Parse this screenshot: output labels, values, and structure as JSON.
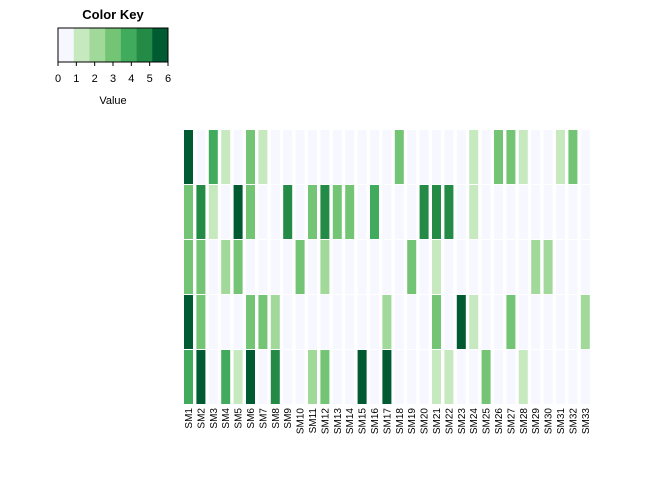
{
  "chart_data": {
    "type": "heatmap",
    "title": "",
    "color_key": {
      "title": "Color Key",
      "xlabel": "Value",
      "ticks": [
        "0",
        "1",
        "2",
        "3",
        "4",
        "5",
        "6"
      ],
      "range": [
        0,
        6
      ],
      "colors": [
        "#f7f7ff",
        "#c7e9c0",
        "#a1d99b",
        "#74c476",
        "#41ab5d",
        "#238b45",
        "#005a32"
      ]
    },
    "columns": [
      "SM1",
      "SM2",
      "SM3",
      "SM4",
      "SM5",
      "SM6",
      "SM7",
      "SM8",
      "SM9",
      "SM10",
      "SM11",
      "SM12",
      "SM13",
      "SM14",
      "SM15",
      "SM16",
      "SM17",
      "SM18",
      "SM19",
      "SM20",
      "SM21",
      "SM22",
      "SM23",
      "SM24",
      "SM25",
      "SM26",
      "SM27",
      "SM28",
      "SM29",
      "SM30",
      "SM31",
      "SM32",
      "SM33"
    ],
    "rows": [
      [
        6,
        0,
        4,
        1,
        0,
        3,
        1,
        0,
        0,
        0,
        0,
        0,
        0,
        0,
        0,
        0,
        0,
        3,
        0,
        0,
        0,
        0,
        0,
        1,
        0,
        3,
        3,
        1,
        0,
        0,
        1,
        3,
        0
      ],
      [
        3,
        5,
        1,
        0,
        6,
        3,
        0,
        0,
        5,
        0,
        3,
        5,
        3,
        3,
        0,
        4,
        0,
        0,
        0,
        5,
        5,
        5,
        0,
        1,
        0,
        0,
        0,
        0,
        0,
        0,
        0,
        0,
        0
      ],
      [
        3,
        3,
        0,
        2,
        3,
        0,
        0,
        0,
        0,
        3,
        0,
        2,
        0,
        0,
        0,
        0,
        0,
        0,
        3,
        0,
        1,
        0,
        0,
        0,
        0,
        0,
        0,
        0,
        2,
        2,
        0,
        0,
        0
      ],
      [
        6,
        3,
        0,
        0,
        0,
        3,
        3,
        2,
        0,
        0,
        0,
        0,
        0,
        0,
        0,
        0,
        2,
        0,
        0,
        0,
        3,
        0,
        6,
        1,
        0,
        0,
        3,
        0,
        0,
        0,
        0,
        0,
        2
      ],
      [
        4,
        6,
        0,
        4,
        1,
        6,
        0,
        5,
        0,
        0,
        2,
        3,
        0,
        0,
        6,
        0,
        6,
        0,
        0,
        0,
        1,
        1,
        0,
        0,
        3,
        0,
        0,
        1,
        0,
        0,
        0,
        0,
        0
      ]
    ]
  }
}
